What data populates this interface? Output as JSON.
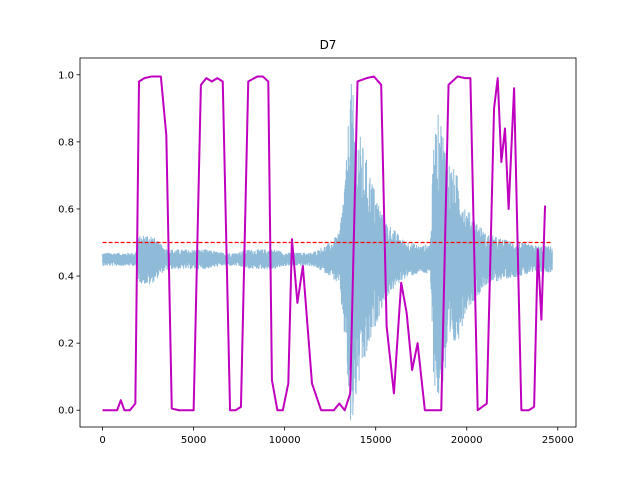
{
  "chart_data": {
    "type": "line",
    "title": "D7",
    "xlabel": "",
    "ylabel": "",
    "xlim": [
      -1240,
      26000
    ],
    "ylim": [
      -0.05,
      1.05
    ],
    "xticks": [
      0,
      5000,
      10000,
      15000,
      20000,
      25000
    ],
    "xtick_labels": [
      "0",
      "5000",
      "10000",
      "15000",
      "20000",
      "25000"
    ],
    "yticks": [
      0.0,
      0.2,
      0.4,
      0.6,
      0.8,
      1.0
    ],
    "ytick_labels": [
      "0.0",
      "0.2",
      "0.4",
      "0.6",
      "0.8",
      "1.0"
    ],
    "grid": false,
    "legend": "none",
    "threshold": {
      "value": 0.5,
      "x_start": 0,
      "x_end": 24700,
      "color": "#ff0000",
      "style": "dashed"
    },
    "waveform": {
      "color": "#1f77b4",
      "opacity": 0.5,
      "x_start": 0,
      "x_end": 24700,
      "baseline": 0.45,
      "envelope": [
        [
          0,
          0.02
        ],
        [
          1800,
          0.02
        ],
        [
          2000,
          0.07
        ],
        [
          2600,
          0.08
        ],
        [
          3300,
          0.04
        ],
        [
          3700,
          0.03
        ],
        [
          5000,
          0.03
        ],
        [
          5600,
          0.03
        ],
        [
          6600,
          0.02
        ],
        [
          7300,
          0.02
        ],
        [
          8000,
          0.03
        ],
        [
          9500,
          0.03
        ],
        [
          10000,
          0.02
        ],
        [
          11500,
          0.02
        ],
        [
          12500,
          0.05
        ],
        [
          13000,
          0.08
        ],
        [
          13400,
          0.3
        ],
        [
          13600,
          0.55
        ],
        [
          14000,
          0.4
        ],
        [
          14500,
          0.3
        ],
        [
          15000,
          0.2
        ],
        [
          15500,
          0.12
        ],
        [
          16500,
          0.06
        ],
        [
          17500,
          0.04
        ],
        [
          18000,
          0.05
        ],
        [
          18200,
          0.38
        ],
        [
          18500,
          0.45
        ],
        [
          19000,
          0.3
        ],
        [
          19500,
          0.25
        ],
        [
          20000,
          0.15
        ],
        [
          20500,
          0.12
        ],
        [
          21000,
          0.08
        ],
        [
          22000,
          0.06
        ],
        [
          23000,
          0.05
        ],
        [
          24000,
          0.04
        ],
        [
          24700,
          0.04
        ]
      ]
    },
    "series": [
      {
        "color": "#bf00bf",
        "x": [
          0,
          400,
          800,
          1000,
          1200,
          1500,
          1800,
          2000,
          2300,
          2700,
          3200,
          3500,
          3800,
          4200,
          4700,
          5000,
          5400,
          5700,
          6000,
          6300,
          6600,
          7000,
          7300,
          7600,
          8000,
          8500,
          8800,
          9100,
          9300,
          9600,
          9900,
          10200,
          10400,
          10700,
          11000,
          11500,
          12000,
          12300,
          12700,
          13000,
          13300,
          13600,
          14000,
          14500,
          14900,
          15300,
          15600,
          16000,
          16400,
          16700,
          17000,
          17300,
          17700,
          18000,
          18300,
          18600,
          19000,
          19500,
          19900,
          20200,
          20600,
          21100,
          21500,
          21700,
          21900,
          22100,
          22300,
          22600,
          23000,
          23400,
          23700,
          23900,
          24100,
          24300
        ],
        "values": [
          0.0,
          0.0,
          0.0,
          0.03,
          0.0,
          0.0,
          0.02,
          0.98,
          0.99,
          0.995,
          0.995,
          0.82,
          0.005,
          0.0,
          0.0,
          0.0,
          0.97,
          0.99,
          0.98,
          0.99,
          0.98,
          0.0,
          0.0,
          0.01,
          0.98,
          0.995,
          0.995,
          0.98,
          0.09,
          0.0,
          0.0,
          0.08,
          0.51,
          0.32,
          0.43,
          0.08,
          0.0,
          0.0,
          0.0,
          0.02,
          0.0,
          0.05,
          0.98,
          0.99,
          0.995,
          0.97,
          0.25,
          0.05,
          0.38,
          0.29,
          0.12,
          0.2,
          0.0,
          0.0,
          0.0,
          0.0,
          0.97,
          0.995,
          0.99,
          0.99,
          0.0,
          0.02,
          0.9,
          0.99,
          0.74,
          0.84,
          0.6,
          0.96,
          0.0,
          0.0,
          0.01,
          0.48,
          0.27,
          0.61
        ]
      }
    ]
  }
}
